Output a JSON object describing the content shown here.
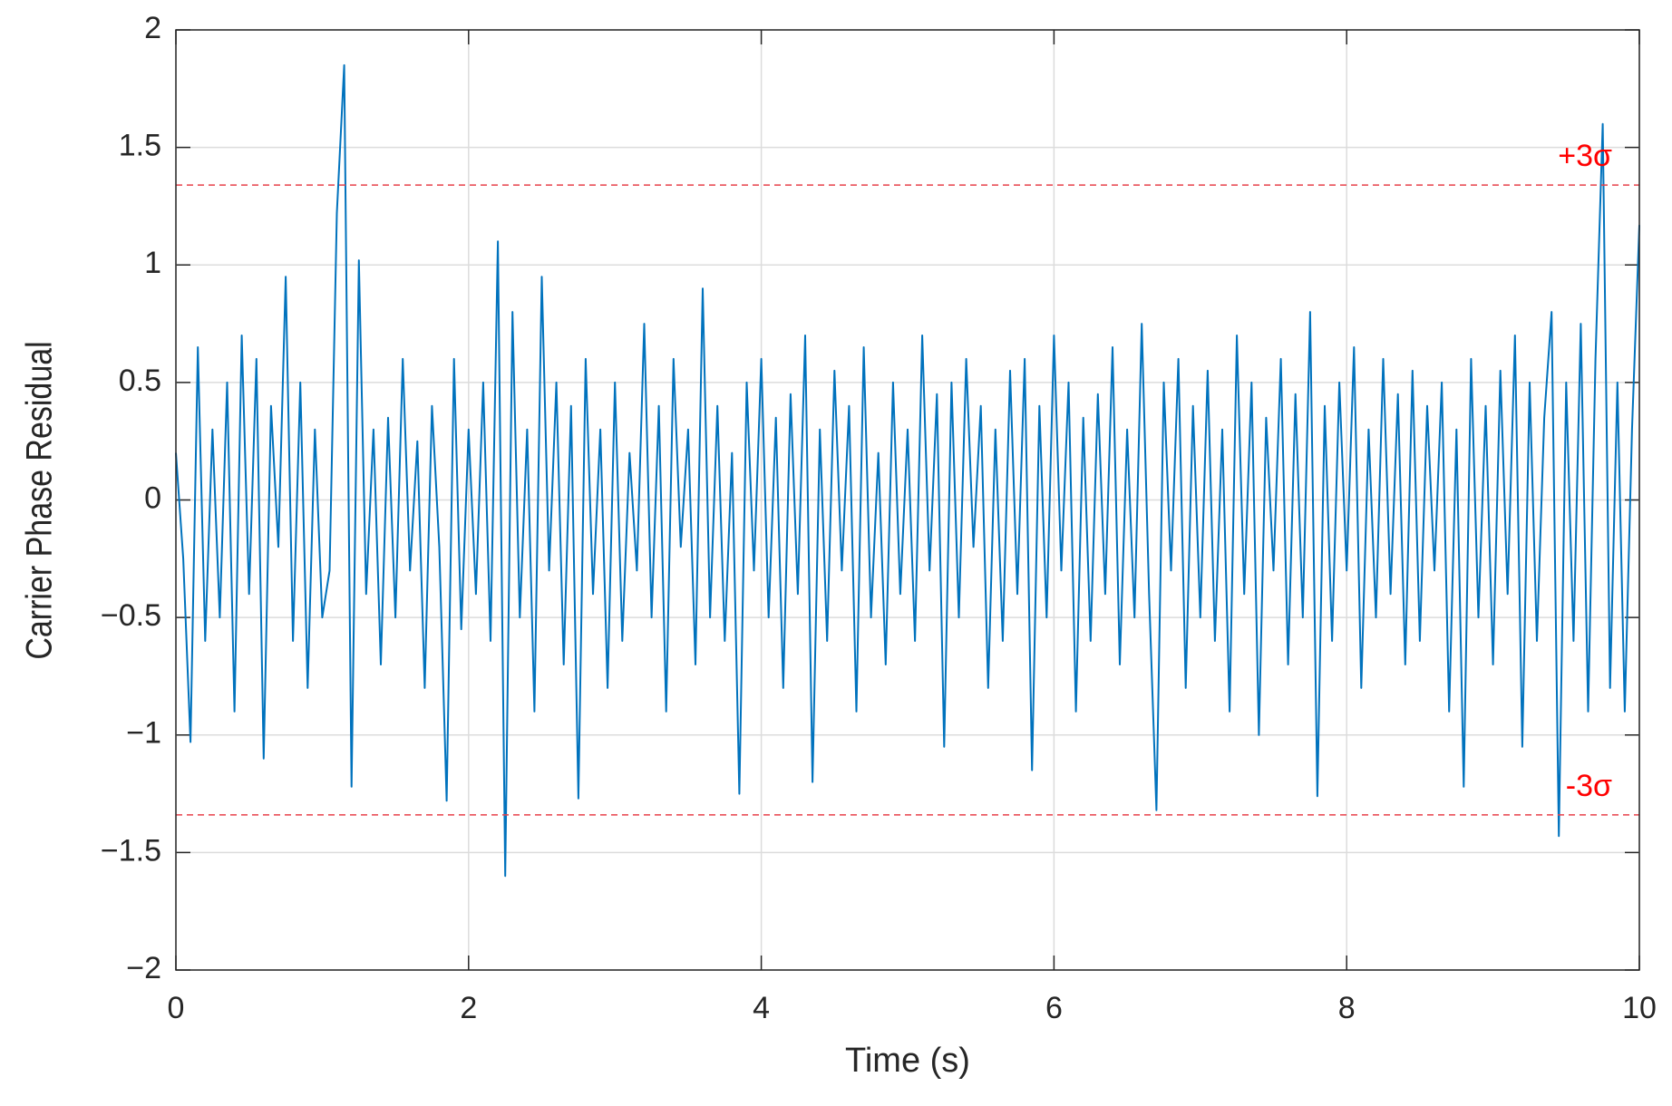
{
  "chart_data": {
    "type": "line",
    "xlabel": "Time (s)",
    "ylabel": "Carrier Phase Residual",
    "x": [
      0,
      0.05,
      0.1,
      0.15,
      0.2,
      0.25,
      0.3,
      0.35,
      0.4,
      0.45,
      0.5,
      0.55,
      0.6,
      0.65,
      0.7,
      0.75,
      0.8,
      0.85,
      0.9,
      0.95,
      1,
      1.05,
      1.1,
      1.15,
      1.2,
      1.25,
      1.3,
      1.35,
      1.4,
      1.45,
      1.5,
      1.55,
      1.6,
      1.65,
      1.7,
      1.75,
      1.8,
      1.85,
      1.9,
      1.95,
      2,
      2.05,
      2.1,
      2.15,
      2.2,
      2.25,
      2.3,
      2.35,
      2.4,
      2.45,
      2.5,
      2.55,
      2.6,
      2.65,
      2.7,
      2.75,
      2.8,
      2.85,
      2.9,
      2.95,
      3,
      3.05,
      3.1,
      3.15,
      3.2,
      3.25,
      3.3,
      3.35,
      3.4,
      3.45,
      3.5,
      3.55,
      3.6,
      3.65,
      3.7,
      3.75,
      3.8,
      3.85,
      3.9,
      3.95,
      4,
      4.05,
      4.1,
      4.15,
      4.2,
      4.25,
      4.3,
      4.35,
      4.4,
      4.45,
      4.5,
      4.55,
      4.6,
      4.65,
      4.7,
      4.75,
      4.8,
      4.85,
      4.9,
      4.95,
      5,
      5.05,
      5.1,
      5.15,
      5.2,
      5.25,
      5.3,
      5.35,
      5.4,
      5.45,
      5.5,
      5.55,
      5.6,
      5.65,
      5.7,
      5.75,
      5.8,
      5.85,
      5.9,
      5.95,
      6,
      6.05,
      6.1,
      6.15,
      6.2,
      6.25,
      6.3,
      6.35,
      6.4,
      6.45,
      6.5,
      6.55,
      6.6,
      6.65,
      6.7,
      6.75,
      6.8,
      6.85,
      6.9,
      6.95,
      7,
      7.05,
      7.1,
      7.15,
      7.2,
      7.25,
      7.3,
      7.35,
      7.4,
      7.45,
      7.5,
      7.55,
      7.6,
      7.65,
      7.7,
      7.75,
      7.8,
      7.85,
      7.9,
      7.95,
      8,
      8.05,
      8.1,
      8.15,
      8.2,
      8.25,
      8.3,
      8.35,
      8.4,
      8.45,
      8.5,
      8.55,
      8.6,
      8.65,
      8.7,
      8.75,
      8.8,
      8.85,
      8.9,
      8.95,
      9,
      9.05,
      9.1,
      9.15,
      9.2,
      9.25,
      9.3,
      9.35,
      9.4,
      9.45,
      9.5,
      9.55,
      9.6,
      9.65,
      9.7,
      9.75,
      9.8,
      9.85,
      9.9,
      9.95,
      10
    ],
    "series": [
      {
        "color": "#0072bd",
        "values": [
          0.2,
          -0.25,
          -1.03,
          0.65,
          -0.6,
          0.3,
          -0.5,
          0.5,
          -0.9,
          0.7,
          -0.4,
          0.6,
          -1.1,
          0.4,
          -0.2,
          0.95,
          -0.6,
          0.5,
          -0.8,
          0.3,
          -0.5,
          -0.3,
          1.22,
          1.85,
          -1.22,
          1.02,
          -0.4,
          0.3,
          -0.7,
          0.35,
          -0.5,
          0.6,
          -0.3,
          0.25,
          -0.8,
          0.4,
          -0.2,
          -1.28,
          0.6,
          -0.55,
          0.3,
          -0.4,
          0.5,
          -0.6,
          1.1,
          -1.6,
          0.8,
          -0.5,
          0.3,
          -0.9,
          0.95,
          -0.3,
          0.5,
          -0.7,
          0.4,
          -1.27,
          0.6,
          -0.4,
          0.3,
          -0.8,
          0.5,
          -0.6,
          0.2,
          -0.3,
          0.75,
          -0.5,
          0.4,
          -0.9,
          0.6,
          -0.2,
          0.3,
          -0.7,
          0.9,
          -0.5,
          0.4,
          -0.6,
          0.2,
          -1.25,
          0.5,
          -0.3,
          0.6,
          -0.5,
          0.35,
          -0.8,
          0.45,
          -0.4,
          0.7,
          -1.2,
          0.3,
          -0.6,
          0.55,
          -0.3,
          0.4,
          -0.9,
          0.65,
          -0.5,
          0.2,
          -0.7,
          0.5,
          -0.4,
          0.3,
          -0.6,
          0.7,
          -0.3,
          0.45,
          -1.05,
          0.5,
          -0.5,
          0.6,
          -0.2,
          0.4,
          -0.8,
          0.3,
          -0.6,
          0.55,
          -0.4,
          0.6,
          -1.15,
          0.4,
          -0.5,
          0.7,
          -0.3,
          0.5,
          -0.9,
          0.35,
          -0.6,
          0.45,
          -0.4,
          0.65,
          -0.7,
          0.3,
          -0.5,
          0.75,
          -0.4,
          -1.32,
          0.5,
          -0.3,
          0.6,
          -0.8,
          0.4,
          -0.5,
          0.55,
          -0.6,
          0.3,
          -0.9,
          0.7,
          -0.4,
          0.5,
          -1.0,
          0.35,
          -0.3,
          0.6,
          -0.7,
          0.45,
          -0.5,
          0.8,
          -1.26,
          0.4,
          -0.6,
          0.5,
          -0.3,
          0.65,
          -0.8,
          0.3,
          -0.5,
          0.6,
          -0.4,
          0.45,
          -0.7,
          0.55,
          -0.6,
          0.4,
          -0.3,
          0.5,
          -0.9,
          0.3,
          -1.22,
          0.6,
          -0.5,
          0.4,
          -0.7,
          0.55,
          -0.4,
          0.7,
          -1.05,
          0.5,
          -0.6,
          0.35,
          0.8,
          -1.43,
          0.5,
          -0.6,
          0.75,
          -0.9,
          0.6,
          1.6,
          -0.8,
          0.5,
          -0.9,
          0.3,
          1.17
        ]
      }
    ],
    "reference_lines": [
      {
        "value": 1.34,
        "label": "+3σ"
      },
      {
        "value": -1.34,
        "label": "-3σ"
      }
    ],
    "reference_color": "#e8414a",
    "annotation_color": "#ff0000",
    "xlim": [
      0,
      10
    ],
    "xticks": [
      0,
      2,
      4,
      6,
      8,
      10
    ],
    "ylim": [
      -2,
      2
    ],
    "yticks": [
      {
        "value": -2,
        "label": "−2"
      },
      {
        "value": -1.5,
        "label": "−1.5"
      },
      {
        "value": -1,
        "label": "−1"
      },
      {
        "value": -0.5,
        "label": "−0.5"
      },
      0,
      0.5,
      1,
      1.5,
      2
    ],
    "grid": true
  }
}
